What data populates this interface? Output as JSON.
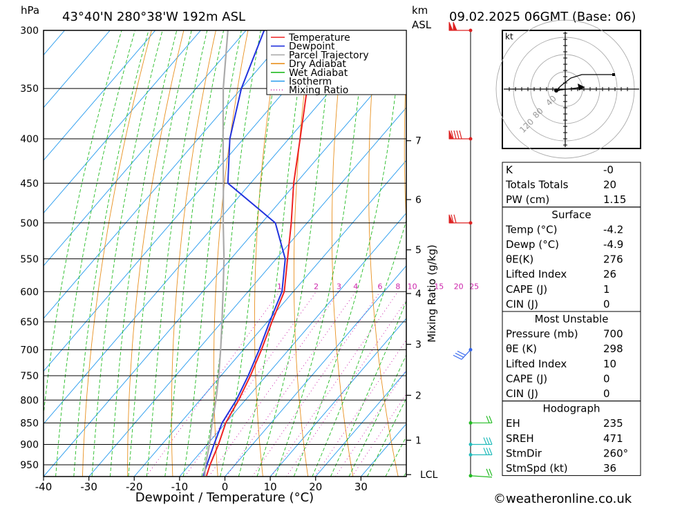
{
  "header": {
    "pressure_unit": "hPa",
    "location": "43°40'N  280°38'W  192m  ASL",
    "km_label": "km",
    "asl_label": "ASL",
    "datetime": "09.02.2025  06GMT  (Base: 06)"
  },
  "chart_data": {
    "type": "skew-t",
    "xlabel": "Dewpoint / Temperature (°C)",
    "ylabel": "hPa",
    "mixing_ratio_axis_label": "Mixing Ratio (g/kg)",
    "pressure_levels": [
      300,
      350,
      400,
      450,
      500,
      550,
      600,
      650,
      700,
      750,
      800,
      850,
      900,
      950
    ],
    "pressure_range": [
      300,
      980
    ],
    "temperature_ticks": [
      -40,
      -30,
      -20,
      -10,
      0,
      10,
      20,
      30
    ],
    "temperature_range_at_base": [
      -40,
      40
    ],
    "km_ticks": [
      {
        "label": "7",
        "p": 402
      },
      {
        "label": "6",
        "p": 470
      },
      {
        "label": "5",
        "p": 537
      },
      {
        "label": "4",
        "p": 603
      },
      {
        "label": "3",
        "p": 690
      },
      {
        "label": "2",
        "p": 790
      },
      {
        "label": "1",
        "p": 890
      },
      {
        "label": "LCL",
        "p": 975
      }
    ],
    "mixing_ratio_labels": [
      "1",
      "2",
      "3",
      "4",
      "6",
      "8",
      "10",
      "15",
      "20",
      "25"
    ],
    "mixing_ratio_values": [
      1,
      2,
      3,
      4,
      6,
      8,
      10,
      15,
      20,
      25
    ],
    "legend": [
      {
        "label": "Temperature",
        "color": "#ee2222",
        "style": "solid"
      },
      {
        "label": "Dewpoint",
        "color": "#2233dd",
        "style": "solid"
      },
      {
        "label": "Parcel Trajectory",
        "color": "#aaaaaa",
        "style": "solid"
      },
      {
        "label": "Dry Adiabat",
        "color": "#e8901e",
        "style": "solid"
      },
      {
        "label": "Wet Adiabat",
        "color": "#22bb22",
        "style": "solid"
      },
      {
        "label": "Isotherm",
        "color": "#2299ee",
        "style": "solid"
      },
      {
        "label": "Mixing Ratio",
        "color": "#cc22aa",
        "style": "dotted"
      }
    ],
    "series": [
      {
        "name": "Temperature",
        "points": [
          {
            "p": 978,
            "t": -4.2
          },
          {
            "p": 950,
            "t": -5.5
          },
          {
            "p": 900,
            "t": -7.5
          },
          {
            "p": 850,
            "t": -10
          },
          {
            "p": 800,
            "t": -11.5
          },
          {
            "p": 750,
            "t": -13.5
          },
          {
            "p": 700,
            "t": -16
          },
          {
            "p": 650,
            "t": -19
          },
          {
            "p": 600,
            "t": -22
          },
          {
            "p": 550,
            "t": -27.5
          },
          {
            "p": 500,
            "t": -33.5
          },
          {
            "p": 450,
            "t": -40.5
          },
          {
            "p": 400,
            "t": -47.5
          },
          {
            "p": 350,
            "t": -55.5
          },
          {
            "p": 300,
            "t": -64
          }
        ]
      },
      {
        "name": "Dewpoint",
        "points": [
          {
            "p": 978,
            "t": -4.9
          },
          {
            "p": 950,
            "t": -6.2
          },
          {
            "p": 900,
            "t": -8.5
          },
          {
            "p": 850,
            "t": -10.8
          },
          {
            "p": 800,
            "t": -12
          },
          {
            "p": 750,
            "t": -14
          },
          {
            "p": 700,
            "t": -16.5
          },
          {
            "p": 650,
            "t": -19.5
          },
          {
            "p": 600,
            "t": -22.5
          },
          {
            "p": 550,
            "t": -28
          },
          {
            "p": 500,
            "t": -37
          },
          {
            "p": 450,
            "t": -55
          },
          {
            "p": 400,
            "t": -63
          },
          {
            "p": 350,
            "t": -70
          },
          {
            "p": 300,
            "t": -76
          }
        ]
      },
      {
        "name": "Parcel Trajectory",
        "points": [
          {
            "p": 978,
            "t": -4.6
          },
          {
            "p": 950,
            "t": -6.5
          },
          {
            "p": 900,
            "t": -9.5
          },
          {
            "p": 850,
            "t": -13
          },
          {
            "p": 800,
            "t": -16.5
          },
          {
            "p": 750,
            "t": -20.5
          },
          {
            "p": 700,
            "t": -25
          },
          {
            "p": 650,
            "t": -30
          },
          {
            "p": 600,
            "t": -35.5
          },
          {
            "p": 550,
            "t": -41.5
          },
          {
            "p": 500,
            "t": -48.5
          },
          {
            "p": 450,
            "t": -56
          },
          {
            "p": 400,
            "t": -64.5
          },
          {
            "p": 350,
            "t": -74
          },
          {
            "p": 300,
            "t": -84
          }
        ]
      }
    ],
    "wind_barbs": [
      {
        "p": 300,
        "color": "#dd2222",
        "flags": 2,
        "full": 0
      },
      {
        "p": 400,
        "color": "#dd2222",
        "flags": 1,
        "full": 4
      },
      {
        "p": 500,
        "color": "#dd2222",
        "flags": 1,
        "full": 2
      },
      {
        "p": 700,
        "color": "#3366ee",
        "flags": 0,
        "full": 3
      },
      {
        "p": 850,
        "color": "#22bb22",
        "flags": 0,
        "full": 2
      },
      {
        "p": 900,
        "color": "#22bbbb",
        "flags": 0,
        "full": 3
      },
      {
        "p": 925,
        "color": "#22bbbb",
        "flags": 0,
        "full": 3
      },
      {
        "p": 978,
        "color": "#22bb22",
        "flags": 0,
        "full": 2
      }
    ]
  },
  "hodograph": {
    "unit_label": "kt",
    "ring_labels": [
      "40",
      "80",
      "120"
    ]
  },
  "indices": {
    "top": [
      {
        "label": "K",
        "value": "-0"
      },
      {
        "label": "Totals Totals",
        "value": "20"
      },
      {
        "label": "PW (cm)",
        "value": "1.15"
      }
    ],
    "surface": {
      "title": "Surface",
      "rows": [
        {
          "label": "Temp (°C)",
          "value": "-4.2"
        },
        {
          "label": "Dewp (°C)",
          "value": "-4.9"
        },
        {
          "label": "θE(K)",
          "value": "276"
        },
        {
          "label": "Lifted Index",
          "value": "26"
        },
        {
          "label": "CAPE (J)",
          "value": "1"
        },
        {
          "label": "CIN (J)",
          "value": "0"
        }
      ]
    },
    "most_unstable": {
      "title": "Most Unstable",
      "rows": [
        {
          "label": "Pressure (mb)",
          "value": "700"
        },
        {
          "label": "θE (K)",
          "value": "298"
        },
        {
          "label": "Lifted Index",
          "value": "10"
        },
        {
          "label": "CAPE (J)",
          "value": "0"
        },
        {
          "label": "CIN (J)",
          "value": "0"
        }
      ]
    },
    "hodograph": {
      "title": "Hodograph",
      "rows": [
        {
          "label": "EH",
          "value": "235"
        },
        {
          "label": "SREH",
          "value": "471"
        },
        {
          "label": "StmDir",
          "value": "260°"
        },
        {
          "label": "StmSpd (kt)",
          "value": "36"
        }
      ]
    }
  },
  "footer": {
    "copyright": "©weatheronline.co.uk"
  }
}
